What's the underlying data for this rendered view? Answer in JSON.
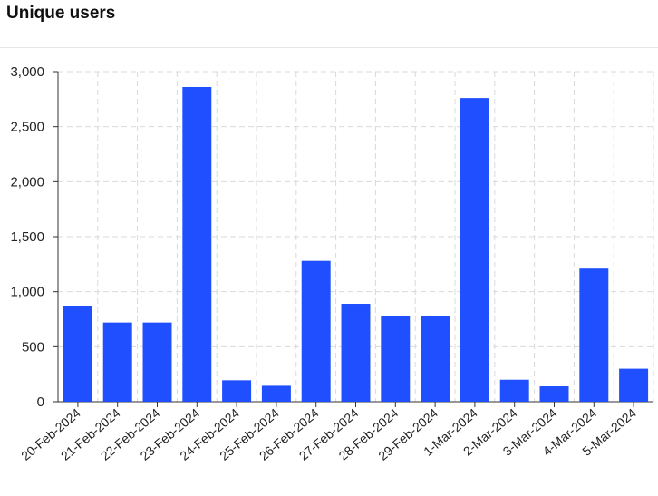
{
  "title": "Unique users",
  "colors": {
    "bar": "#1f4fff",
    "grid": "#d9d9d9",
    "axis": "#333333"
  },
  "chart_data": {
    "type": "bar",
    "title": "Unique users",
    "xlabel": "",
    "ylabel": "",
    "ylim": [
      0,
      3000
    ],
    "yticks": [
      0,
      500,
      1000,
      1500,
      2000,
      2500,
      3000
    ],
    "ytick_labels": [
      "0",
      "500",
      "1,000",
      "1,500",
      "2,000",
      "2,500",
      "3,000"
    ],
    "grid": true,
    "categories": [
      "20-Feb-2024",
      "21-Feb-2024",
      "22-Feb-2024",
      "23-Feb-2024",
      "24-Feb-2024",
      "25-Feb-2024",
      "26-Feb-2024",
      "27-Feb-2024",
      "28-Feb-2024",
      "29-Feb-2024",
      "1-Mar-2024",
      "2-Mar-2024",
      "3-Mar-2024",
      "4-Mar-2024",
      "5-Mar-2024"
    ],
    "values": [
      870,
      720,
      720,
      2860,
      195,
      145,
      1280,
      890,
      775,
      775,
      2760,
      200,
      140,
      1210,
      300
    ]
  }
}
